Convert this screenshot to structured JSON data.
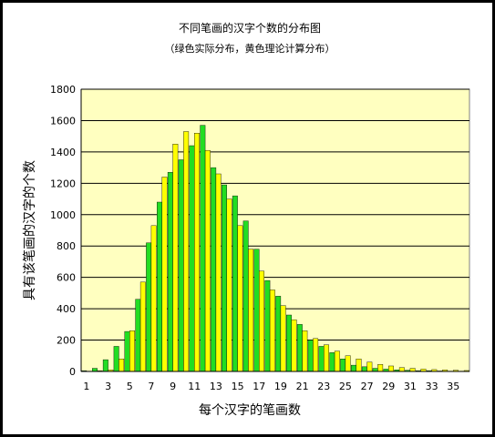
{
  "chart_data": {
    "type": "bar",
    "title": "不同笔画的汉字个数的分布图",
    "subtitle": "（绿色实际分布，黄色理论计算分布）",
    "xlabel": "每个汉字的笔画数",
    "ylabel": "具有该笔画的汉字的个数",
    "ylim": [
      0,
      1800
    ],
    "yticks": [
      0,
      200,
      400,
      600,
      800,
      1000,
      1200,
      1400,
      1600,
      1800
    ],
    "xticks": [
      1,
      3,
      5,
      7,
      9,
      11,
      13,
      15,
      17,
      19,
      21,
      23,
      25,
      27,
      29,
      31,
      33,
      35
    ],
    "categories": [
      1,
      2,
      3,
      4,
      5,
      6,
      7,
      8,
      9,
      10,
      11,
      12,
      13,
      14,
      15,
      16,
      17,
      18,
      19,
      20,
      21,
      22,
      23,
      24,
      25,
      26,
      27,
      28,
      29,
      30,
      31,
      32,
      33,
      34,
      35,
      36
    ],
    "grid": true,
    "background_color": "#ffffc0",
    "series": [
      {
        "name": "实际分布",
        "color": "#22dd22",
        "values": [
          5,
          20,
          75,
          160,
          255,
          460,
          820,
          1080,
          1270,
          1350,
          1440,
          1570,
          1300,
          1190,
          1120,
          960,
          780,
          580,
          480,
          360,
          300,
          200,
          160,
          120,
          80,
          40,
          30,
          20,
          15,
          10,
          8,
          5,
          5,
          3,
          2,
          2
        ]
      },
      {
        "name": "理论计算分布",
        "color": "#ffff00",
        "values": [
          2,
          5,
          10,
          80,
          260,
          570,
          930,
          1240,
          1450,
          1530,
          1520,
          1410,
          1260,
          1100,
          930,
          780,
          640,
          520,
          420,
          330,
          260,
          210,
          170,
          130,
          100,
          80,
          60,
          45,
          35,
          25,
          20,
          15,
          12,
          10,
          8,
          6
        ]
      }
    ]
  }
}
